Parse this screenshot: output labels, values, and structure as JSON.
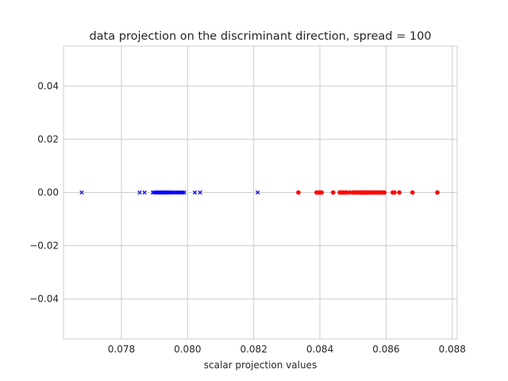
{
  "chart_data": {
    "type": "scatter",
    "title": "data projection on the discriminant direction, spread = 100",
    "xlabel": "scalar projection values",
    "ylabel": "",
    "xlim": [
      0.07625,
      0.08815
    ],
    "ylim": [
      -0.055,
      0.055
    ],
    "xticks": [
      "0.078",
      "0.080",
      "0.082",
      "0.084",
      "0.086",
      "0.088"
    ],
    "xtick_values": [
      0.078,
      0.08,
      0.082,
      0.084,
      0.086,
      0.088
    ],
    "yticks": [
      "−0.04",
      "−0.02",
      "0.00",
      "0.02",
      "0.04"
    ],
    "ytick_values": [
      -0.04,
      -0.02,
      0.0,
      0.02,
      0.04
    ],
    "grid": true,
    "series": [
      {
        "marker": "x",
        "color": "#0000ff",
        "x": [
          0.0768,
          0.07855,
          0.0787,
          0.07895,
          0.079,
          0.07905,
          0.0791,
          0.07912,
          0.07915,
          0.07918,
          0.0792,
          0.07922,
          0.07925,
          0.07928,
          0.0793,
          0.07932,
          0.07935,
          0.07938,
          0.0794,
          0.07942,
          0.07945,
          0.0795,
          0.07955,
          0.0796,
          0.07965,
          0.0797,
          0.07975,
          0.0798,
          0.07985,
          0.0799,
          0.08022,
          0.08038,
          0.08212
        ],
        "y": [
          0,
          0,
          0,
          0,
          0,
          0,
          0,
          0,
          0,
          0,
          0,
          0,
          0,
          0,
          0,
          0,
          0,
          0,
          0,
          0,
          0,
          0,
          0,
          0,
          0,
          0,
          0,
          0,
          0,
          0,
          0,
          0,
          0
        ]
      },
      {
        "marker": "o",
        "color": "#ff0000",
        "x": [
          0.08335,
          0.0839,
          0.08395,
          0.084,
          0.08405,
          0.0844,
          0.0846,
          0.08465,
          0.0847,
          0.08475,
          0.0848,
          0.0849,
          0.085,
          0.08505,
          0.0851,
          0.08515,
          0.0852,
          0.08522,
          0.08525,
          0.08528,
          0.0853,
          0.08532,
          0.08535,
          0.08538,
          0.0854,
          0.08542,
          0.08545,
          0.08548,
          0.0855,
          0.08555,
          0.0856,
          0.08565,
          0.0857,
          0.08575,
          0.0858,
          0.08585,
          0.0859,
          0.08595,
          0.0862,
          0.08625,
          0.0864,
          0.0868,
          0.08755
        ],
        "y": [
          0,
          0,
          0,
          0,
          0,
          0,
          0,
          0,
          0,
          0,
          0,
          0,
          0,
          0,
          0,
          0,
          0,
          0,
          0,
          0,
          0,
          0,
          0,
          0,
          0,
          0,
          0,
          0,
          0,
          0,
          0,
          0,
          0,
          0,
          0,
          0,
          0,
          0,
          0,
          0,
          0,
          0,
          0
        ]
      }
    ]
  }
}
